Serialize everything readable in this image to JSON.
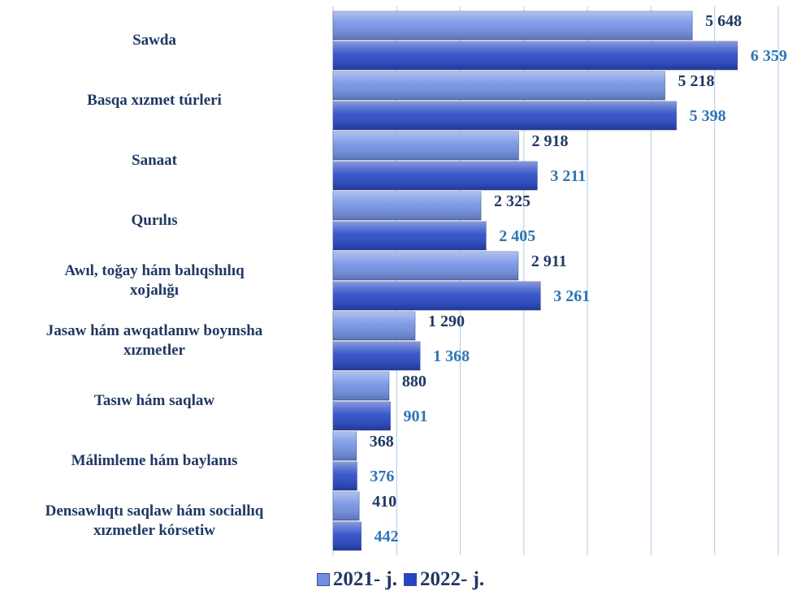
{
  "chart_data": {
    "type": "bar",
    "orientation": "horizontal",
    "categories": [
      "Sawda",
      "Basqa xızmet túrleri",
      "Sanaat",
      "Qurılıs",
      "Awıl, toğay hám balıqshılıq\nxojalığı",
      "Jasaw hám awqatlanıw boyınsha\nxızmetler",
      "Tasıw hám saqlaw",
      "Málimleme hám baylanıs",
      "Densawlıqtı saqlaw hám sociallıq\nxızmetler kórsetiw"
    ],
    "series": [
      {
        "name": "2021- j.",
        "color": "#6f8fe3",
        "label_color": "#1f3864",
        "values": [
          5648,
          5218,
          2918,
          2325,
          2911,
          1290,
          880,
          368,
          410
        ],
        "value_labels": [
          "5 648",
          "5 218",
          "2 918",
          "2 325",
          "2 911",
          "1 290",
          "880",
          "368",
          "410"
        ]
      },
      {
        "name": "2022- j.",
        "color": "#2446c4",
        "label_color": "#2e75b6",
        "values": [
          6359,
          5398,
          3211,
          2405,
          3261,
          1368,
          901,
          376,
          442
        ],
        "value_labels": [
          "6 359",
          "5 398",
          "3 211",
          "2 405",
          "3 261",
          "1 368",
          "901",
          "376",
          "442"
        ]
      }
    ],
    "xlim": [
      0,
      7000
    ],
    "xticks": [
      0,
      1000,
      2000,
      3000,
      4000,
      5000,
      6000,
      7000
    ],
    "grid": true,
    "legend": "bottom"
  }
}
